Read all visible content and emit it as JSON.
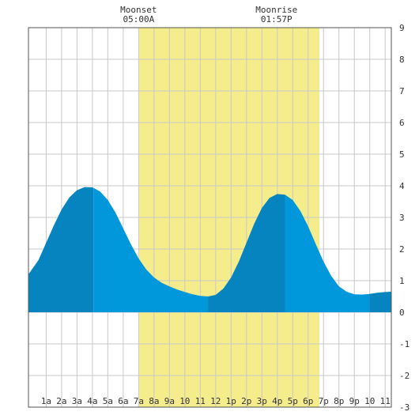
{
  "chart_data": {
    "type": "area",
    "title": "",
    "xlabel": "",
    "ylabel": "",
    "xlim": [
      -0.15,
      23.4
    ],
    "ylim": [
      -3,
      9
    ],
    "y_ticks": [
      -3,
      -2,
      -1,
      0,
      1,
      2,
      3,
      4,
      5,
      6,
      7,
      8,
      9
    ],
    "x_ticks": [
      {
        "h": 1,
        "label": "1a"
      },
      {
        "h": 2,
        "label": "2a"
      },
      {
        "h": 3,
        "label": "3a"
      },
      {
        "h": 4,
        "label": "4a"
      },
      {
        "h": 5,
        "label": "5a"
      },
      {
        "h": 6,
        "label": "6a"
      },
      {
        "h": 7,
        "label": "7a"
      },
      {
        "h": 8,
        "label": "8a"
      },
      {
        "h": 9,
        "label": "9a"
      },
      {
        "h": 10,
        "label": "10"
      },
      {
        "h": 11,
        "label": "11"
      },
      {
        "h": 12,
        "label": "12"
      },
      {
        "h": 13,
        "label": "1p"
      },
      {
        "h": 14,
        "label": "2p"
      },
      {
        "h": 15,
        "label": "3p"
      },
      {
        "h": 16,
        "label": "4p"
      },
      {
        "h": 17,
        "label": "5p"
      },
      {
        "h": 18,
        "label": "6p"
      },
      {
        "h": 19,
        "label": "7p"
      },
      {
        "h": 20,
        "label": "8p"
      },
      {
        "h": 21,
        "label": "9p"
      },
      {
        "h": 22,
        "label": "10"
      },
      {
        "h": 23,
        "label": "11"
      }
    ],
    "daylight": [
      7.03,
      18.73
    ],
    "series": [
      {
        "values": [
          [
            -0.15,
            1.2
          ],
          [
            0.5,
            1.65
          ],
          [
            1.0,
            2.2
          ],
          [
            1.5,
            2.75
          ],
          [
            2.0,
            3.25
          ],
          [
            2.5,
            3.63
          ],
          [
            3.0,
            3.86
          ],
          [
            3.5,
            3.96
          ],
          [
            4.0,
            3.95
          ],
          [
            4.5,
            3.82
          ],
          [
            5.0,
            3.55
          ],
          [
            5.5,
            3.15
          ],
          [
            6.0,
            2.65
          ],
          [
            6.5,
            2.15
          ],
          [
            7.0,
            1.7
          ],
          [
            7.5,
            1.35
          ],
          [
            8.0,
            1.1
          ],
          [
            8.5,
            0.93
          ],
          [
            9.0,
            0.82
          ],
          [
            9.5,
            0.72
          ],
          [
            10.0,
            0.64
          ],
          [
            10.5,
            0.57
          ],
          [
            11.0,
            0.52
          ],
          [
            11.5,
            0.5
          ],
          [
            12.0,
            0.55
          ],
          [
            12.5,
            0.75
          ],
          [
            13.0,
            1.1
          ],
          [
            13.5,
            1.6
          ],
          [
            14.0,
            2.2
          ],
          [
            14.5,
            2.8
          ],
          [
            15.0,
            3.3
          ],
          [
            15.5,
            3.62
          ],
          [
            16.0,
            3.74
          ],
          [
            16.5,
            3.72
          ],
          [
            17.0,
            3.55
          ],
          [
            17.5,
            3.2
          ],
          [
            18.0,
            2.72
          ],
          [
            18.5,
            2.15
          ],
          [
            19.0,
            1.6
          ],
          [
            19.5,
            1.15
          ],
          [
            20.0,
            0.82
          ],
          [
            20.5,
            0.65
          ],
          [
            21.0,
            0.57
          ],
          [
            21.5,
            0.56
          ],
          [
            22.0,
            0.58
          ],
          [
            22.5,
            0.62
          ],
          [
            23.0,
            0.64
          ],
          [
            23.4,
            0.65
          ]
        ]
      }
    ],
    "shade_segments": [
      {
        "from": -0.15,
        "to": 4.07,
        "shade": "dark"
      },
      {
        "from": 4.07,
        "to": 11.5,
        "shade": "light"
      },
      {
        "from": 11.5,
        "to": 16.5,
        "shade": "dark"
      },
      {
        "from": 16.5,
        "to": 21.97,
        "shade": "light"
      },
      {
        "from": 21.97,
        "to": 23.4,
        "shade": "dark"
      }
    ],
    "grid": true,
    "colors": {
      "daylight": "#f5ec8c",
      "dark": "#0584bf",
      "light": "#0097db",
      "grid": "#c8c8c8",
      "border": "#555555"
    },
    "annotations": [
      {
        "h": 7.0,
        "title": "Moonset",
        "time": "05:00A"
      },
      {
        "h": 15.95,
        "title": "Moonrise",
        "time": "01:57P"
      }
    ]
  }
}
